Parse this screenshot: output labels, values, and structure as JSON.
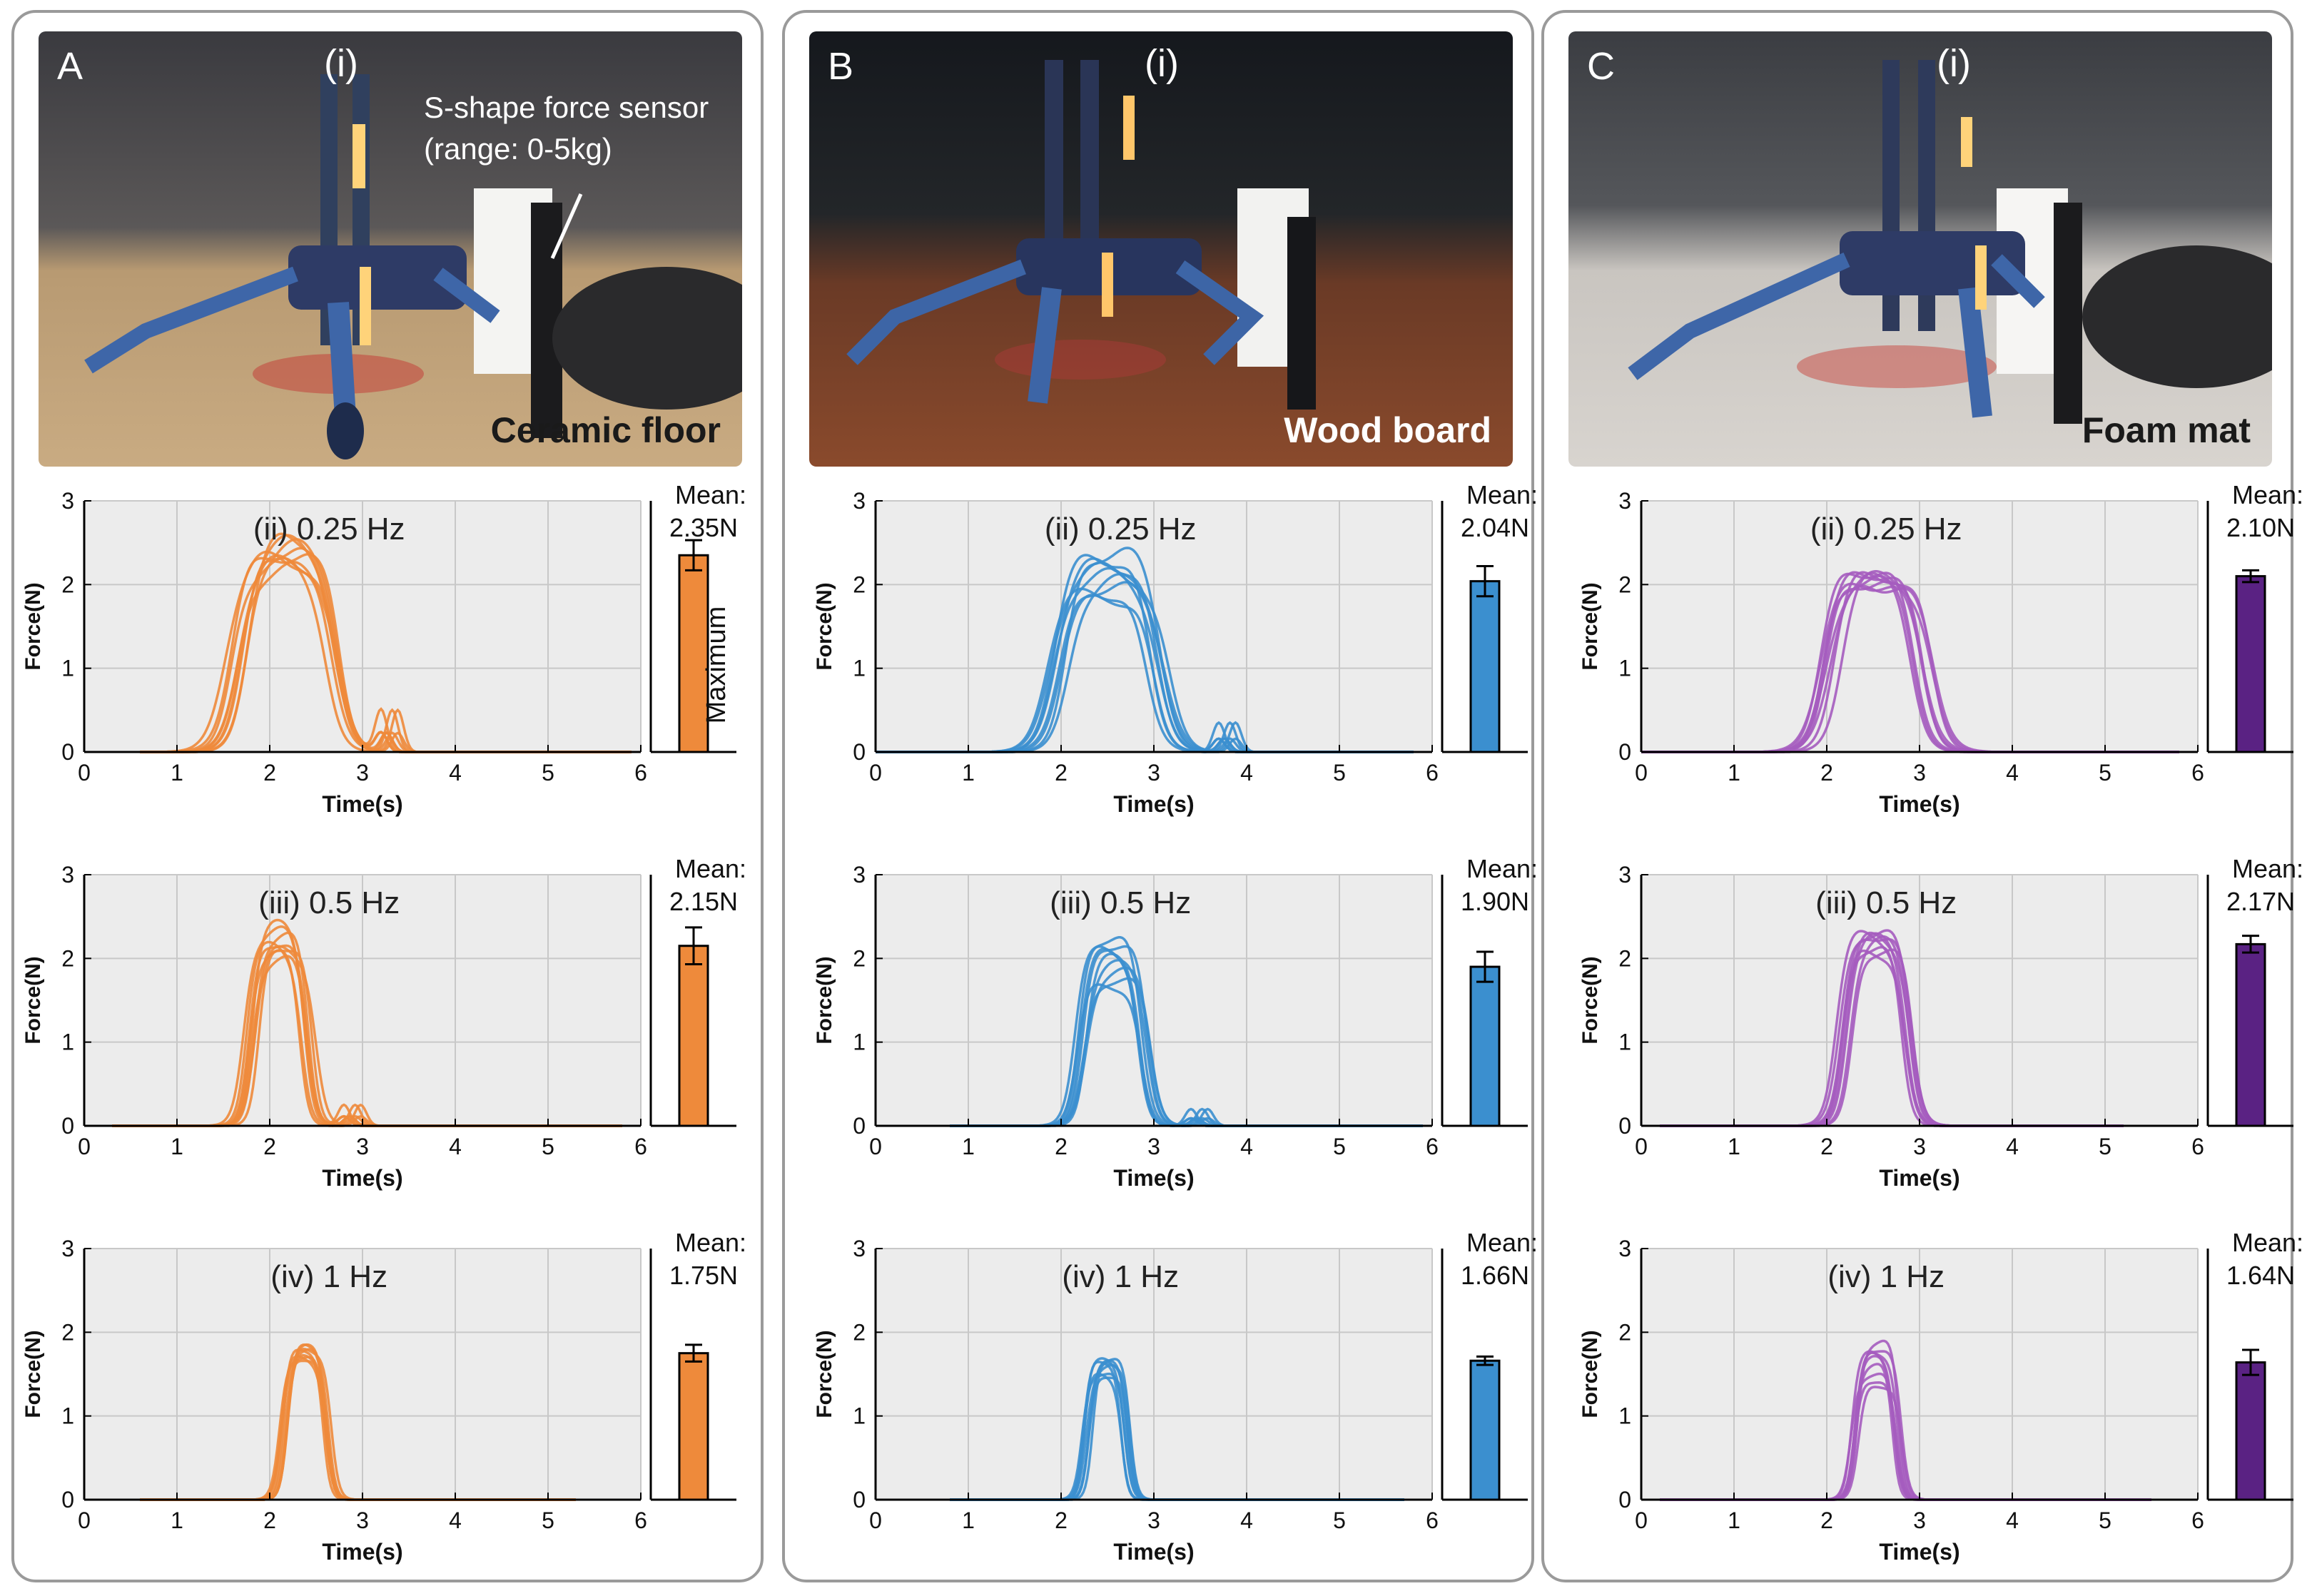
{
  "panels": [
    {
      "letter": "A",
      "photo_label": "(i)",
      "surface": "Ceramic floor",
      "surface_color": "#1a1a1a",
      "sensor_note": [
        "S-shape force sensor",
        "(range: 0-5kg)"
      ],
      "color": "#ee8a3b",
      "bar_color": "#ee8a3b",
      "bar_side_label": "Maximum"
    },
    {
      "letter": "B",
      "photo_label": "(i)",
      "surface": "Wood board",
      "surface_color": "#ffffff",
      "color": "#3b8fcf",
      "bar_color": "#3b8fcf"
    },
    {
      "letter": "C",
      "photo_label": "(i)",
      "surface": "Foam mat",
      "surface_color": "#1a1a1a",
      "color": "#a55cbf",
      "bar_color": "#5a2283"
    }
  ],
  "chart_data": [
    {
      "panel": "A",
      "type": "line",
      "title": "(ii) 0.25 Hz",
      "xlabel": "Time(s)",
      "ylabel": "Force(N)",
      "xlim": [
        0,
        6
      ],
      "ylim": [
        0,
        3
      ],
      "xticks": [
        0,
        1,
        2,
        3,
        4,
        5,
        6
      ],
      "yticks": [
        0,
        1,
        2,
        3
      ],
      "grid": true,
      "peak_center": 2.2,
      "peak_width": 1.05,
      "peak_max": [
        2.2,
        2.55
      ],
      "secondary_bump": {
        "x": 3.2,
        "y": 0.5
      },
      "active_range": [
        0.6,
        5.9
      ],
      "bar": {
        "mean_label": "Mean:",
        "mean_value": "2.35N",
        "value": 2.35,
        "error": 0.18
      }
    },
    {
      "panel": "A",
      "type": "line",
      "title": "(iii) 0.5 Hz",
      "xlabel": "Time(s)",
      "ylabel": "Force(N)",
      "xlim": [
        0,
        6
      ],
      "ylim": [
        0,
        3
      ],
      "xticks": [
        0,
        1,
        2,
        3,
        4,
        5,
        6
      ],
      "yticks": [
        0,
        1,
        2,
        3
      ],
      "grid": true,
      "peak_center": 2.1,
      "peak_width": 0.6,
      "peak_max": [
        2.0,
        2.38
      ],
      "secondary_bump": {
        "x": 2.8,
        "y": 0.25
      },
      "active_range": [
        0.3,
        5.8
      ],
      "bar": {
        "mean_label": "Mean:",
        "mean_value": "2.15N",
        "value": 2.15,
        "error": 0.22
      }
    },
    {
      "panel": "A",
      "type": "line",
      "title": "(iv) 1 Hz",
      "xlabel": "Time(s)",
      "ylabel": "Force(N)",
      "xlim": [
        0,
        6
      ],
      "ylim": [
        0,
        3
      ],
      "xticks": [
        0,
        1,
        2,
        3,
        4,
        5,
        6
      ],
      "yticks": [
        0,
        1,
        2,
        3
      ],
      "grid": true,
      "peak_center": 2.4,
      "peak_width": 0.45,
      "peak_max": [
        1.7,
        1.85
      ],
      "secondary_bump": null,
      "active_range": [
        0.6,
        5.3
      ],
      "bar": {
        "mean_label": "Mean:",
        "mean_value": "1.75N",
        "value": 1.75,
        "error": 0.1
      }
    },
    {
      "panel": "B",
      "type": "line",
      "title": "(ii) 0.25 Hz",
      "xlabel": "Time(s)",
      "ylabel": "Force(N)",
      "xlim": [
        0,
        6
      ],
      "ylim": [
        0,
        3
      ],
      "xticks": [
        0,
        1,
        2,
        3,
        4,
        5,
        6
      ],
      "yticks": [
        0,
        1,
        2,
        3
      ],
      "grid": true,
      "peak_center": 2.5,
      "peak_width": 1.1,
      "peak_max": [
        1.85,
        2.4
      ],
      "secondary_bump": {
        "x": 3.7,
        "y": 0.35
      },
      "active_range": [
        0.0,
        5.8
      ],
      "bar": {
        "mean_label": "Mean:",
        "mean_value": "2.04N",
        "value": 2.04,
        "error": 0.18
      }
    },
    {
      "panel": "B",
      "type": "line",
      "title": "(iii) 0.5 Hz",
      "xlabel": "Time(s)",
      "ylabel": "Force(N)",
      "xlim": [
        0,
        6
      ],
      "ylim": [
        0,
        3
      ],
      "xticks": [
        0,
        1,
        2,
        3,
        4,
        5,
        6
      ],
      "yticks": [
        0,
        1,
        2,
        3
      ],
      "grid": true,
      "peak_center": 2.55,
      "peak_width": 0.65,
      "peak_max": [
        1.7,
        2.28
      ],
      "secondary_bump": {
        "x": 3.4,
        "y": 0.2
      },
      "active_range": [
        0.8,
        5.9
      ],
      "bar": {
        "mean_label": "Mean:",
        "mean_value": "1.90N",
        "value": 1.9,
        "error": 0.18
      }
    },
    {
      "panel": "B",
      "type": "line",
      "title": "(iv) 1 Hz",
      "xlabel": "Time(s)",
      "ylabel": "Force(N)",
      "xlim": [
        0,
        6
      ],
      "ylim": [
        0,
        3
      ],
      "xticks": [
        0,
        1,
        2,
        3,
        4,
        5,
        6
      ],
      "yticks": [
        0,
        1,
        2,
        3
      ],
      "grid": true,
      "peak_center": 2.5,
      "peak_width": 0.42,
      "peak_max": [
        1.5,
        1.72
      ],
      "secondary_bump": null,
      "active_range": [
        0.8,
        5.7
      ],
      "bar": {
        "mean_label": "Mean:",
        "mean_value": "1.66N",
        "value": 1.66,
        "error": 0.05
      }
    },
    {
      "panel": "C",
      "type": "line",
      "title": "(ii) 0.25 Hz",
      "xlabel": "Time(s)",
      "ylabel": "Force(N)",
      "xlim": [
        0,
        6
      ],
      "ylim": [
        0,
        3
      ],
      "xticks": [
        0,
        1,
        2,
        3,
        4,
        5,
        6
      ],
      "yticks": [
        0,
        1,
        2,
        3
      ],
      "grid": true,
      "peak_center": 2.55,
      "peak_width": 1.05,
      "peak_max": [
        2.0,
        2.18
      ],
      "secondary_bump": null,
      "active_range": [
        0.0,
        5.8
      ],
      "bar": {
        "mean_label": "Mean:",
        "mean_value": "2.10N",
        "value": 2.1,
        "error": 0.07
      }
    },
    {
      "panel": "C",
      "type": "line",
      "title": "(iii) 0.5 Hz",
      "xlabel": "Time(s)",
      "ylabel": "Force(N)",
      "xlim": [
        0,
        6
      ],
      "ylim": [
        0,
        3
      ],
      "xticks": [
        0,
        1,
        2,
        3,
        4,
        5,
        6
      ],
      "yticks": [
        0,
        1,
        2,
        3
      ],
      "grid": true,
      "peak_center": 2.55,
      "peak_width": 0.7,
      "peak_max": [
        2.1,
        2.35
      ],
      "secondary_bump": null,
      "active_range": [
        0.2,
        5.2
      ],
      "bar": {
        "mean_label": "Mean:",
        "mean_value": "2.17N",
        "value": 2.17,
        "error": 0.1
      }
    },
    {
      "panel": "C",
      "type": "line",
      "title": "(iv) 1 Hz",
      "xlabel": "Time(s)",
      "ylabel": "Force(N)",
      "xlim": [
        0,
        6
      ],
      "ylim": [
        0,
        3
      ],
      "xticks": [
        0,
        1,
        2,
        3,
        4,
        5,
        6
      ],
      "yticks": [
        0,
        1,
        2,
        3
      ],
      "grid": true,
      "peak_center": 2.55,
      "peak_width": 0.45,
      "peak_max": [
        1.4,
        1.92
      ],
      "secondary_bump": null,
      "active_range": [
        0.2,
        5.5
      ],
      "bar": {
        "mean_label": "Mean:",
        "mean_value": "1.64N",
        "value": 1.64,
        "error": 0.15
      }
    }
  ]
}
